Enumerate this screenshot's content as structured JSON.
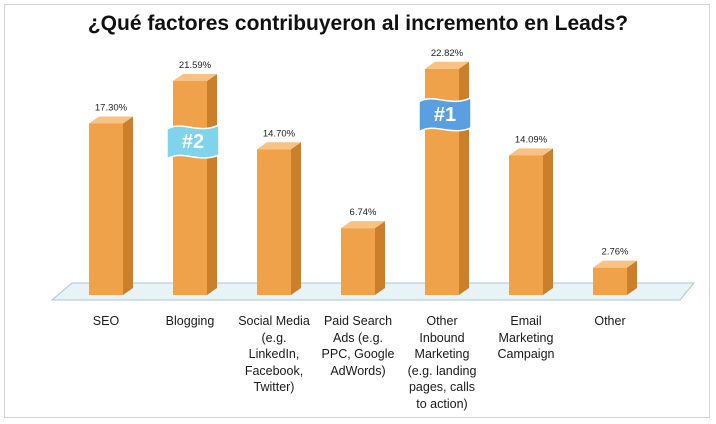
{
  "chart_data": {
    "type": "bar",
    "title": "¿Qué factores contribuyeron al incremento en Leads?",
    "categories": [
      "SEO",
      "Blogging",
      "Social Media\n(e.g.\nLinkedIn,\nFacebook,\nTwitter)",
      "Paid Search\nAds (e.g.\nPPC, Google\nAdWords)",
      "Other\nInbound\nMarketing\n(e.g. landing\npages, calls\nto action)",
      "Email\nMarketing\nCampaign",
      "Other"
    ],
    "values": [
      17.3,
      21.59,
      14.7,
      6.74,
      22.82,
      14.09,
      2.76
    ],
    "value_labels": [
      "17.30%",
      "21.59%",
      "14.70%",
      "6.74%",
      "22.82%",
      "14.09%",
      "2.76%"
    ],
    "ylim": [
      0,
      23
    ],
    "grid": false,
    "legend": "none",
    "annotations": [
      {
        "text": "#2",
        "category": "Blogging",
        "color": "#7fd3ea"
      },
      {
        "text": "#1",
        "category": "Other\nInbound\nMarketing\n(e.g. landing\npages, calls\nto action)",
        "color": "#5a9fe0"
      }
    ],
    "colors": {
      "bar_front": "#f0a24b",
      "bar_side": "#cc7f2a",
      "bar_top": "#f7c283",
      "floor": "#e8f3f8"
    }
  }
}
